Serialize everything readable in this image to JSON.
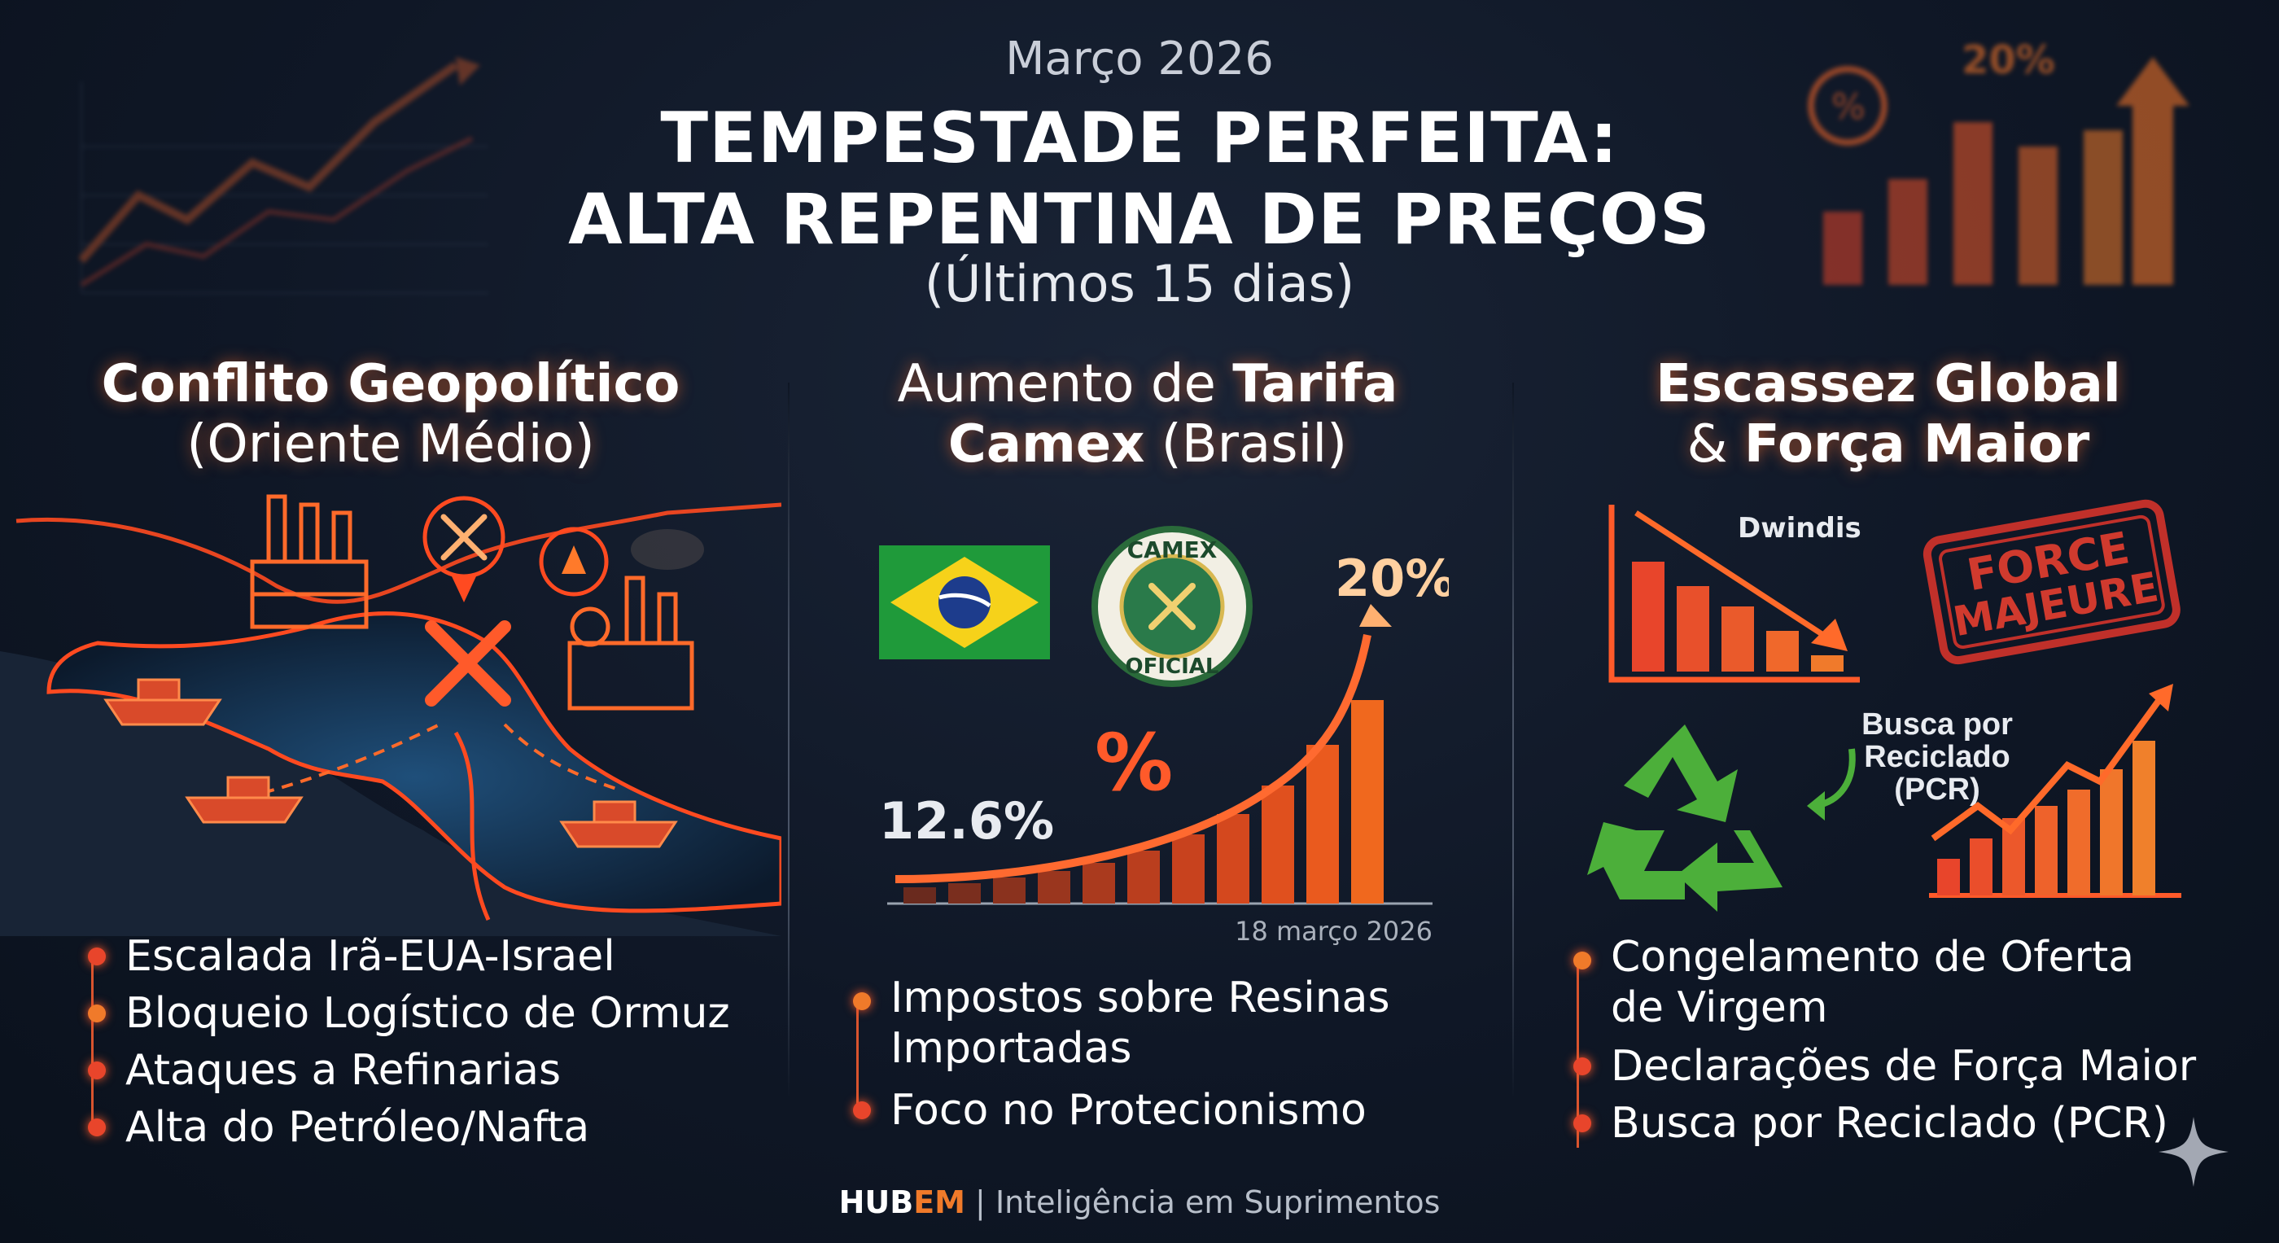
{
  "header": {
    "date": "Março 2026",
    "title_line1": "TEMPESTADE PERFEITA:",
    "title_line2": "ALTA REPENTINA DE PREÇOS",
    "subtitle": "(Últimos 15 dias)"
  },
  "col1": {
    "head_line1": "Conflito Geopolítico",
    "head_line2": "(Oriente Médio)",
    "bullets": [
      "Escalada Irã-EUA-Israel",
      "Bloqueio Logístico de Ormuz",
      "Ataques a Refinarias",
      "Alta do Petróleo/Nafta"
    ]
  },
  "col2": {
    "head_pre": "Aumento de ",
    "head_bold1": "Tarifa",
    "head_bold2": "Camex",
    "head_post": " (Brasil)",
    "seal_top": "CAMEX",
    "seal_bottom": "OFICIAL",
    "pct_new": "20%",
    "pct_old": "12.6%",
    "pct_symbol": "%",
    "chart_date": "18 março 2026",
    "bullets": [
      "Impostos sobre Resinas Importadas",
      "Foco no Protecionismo"
    ]
  },
  "col3": {
    "head_line1": "Escassez Global",
    "head_amp": "& ",
    "head_bold": "Força Maior",
    "dwindle_label": "Dwindis",
    "stamp_line1": "FORCE",
    "stamp_line2": "MAJEURE",
    "pcr_line1": "Busca por",
    "pcr_line2": "Reciclado",
    "pcr_line3": "(PCR)",
    "bullets": [
      "Congelamento de Oferta de Virgem",
      "Declarações de Força Maior",
      "Busca por Reciclado (PCR)"
    ]
  },
  "deco": {
    "pct_topright": "20%"
  },
  "footer": {
    "brand_a": "HUB",
    "brand_b": "EM",
    "sep": " | ",
    "tagline": "Inteligência em Suprimentos"
  },
  "colors": {
    "accent_orange": "#f07a2a",
    "accent_red": "#e8452b",
    "bg": "#0e1624"
  }
}
